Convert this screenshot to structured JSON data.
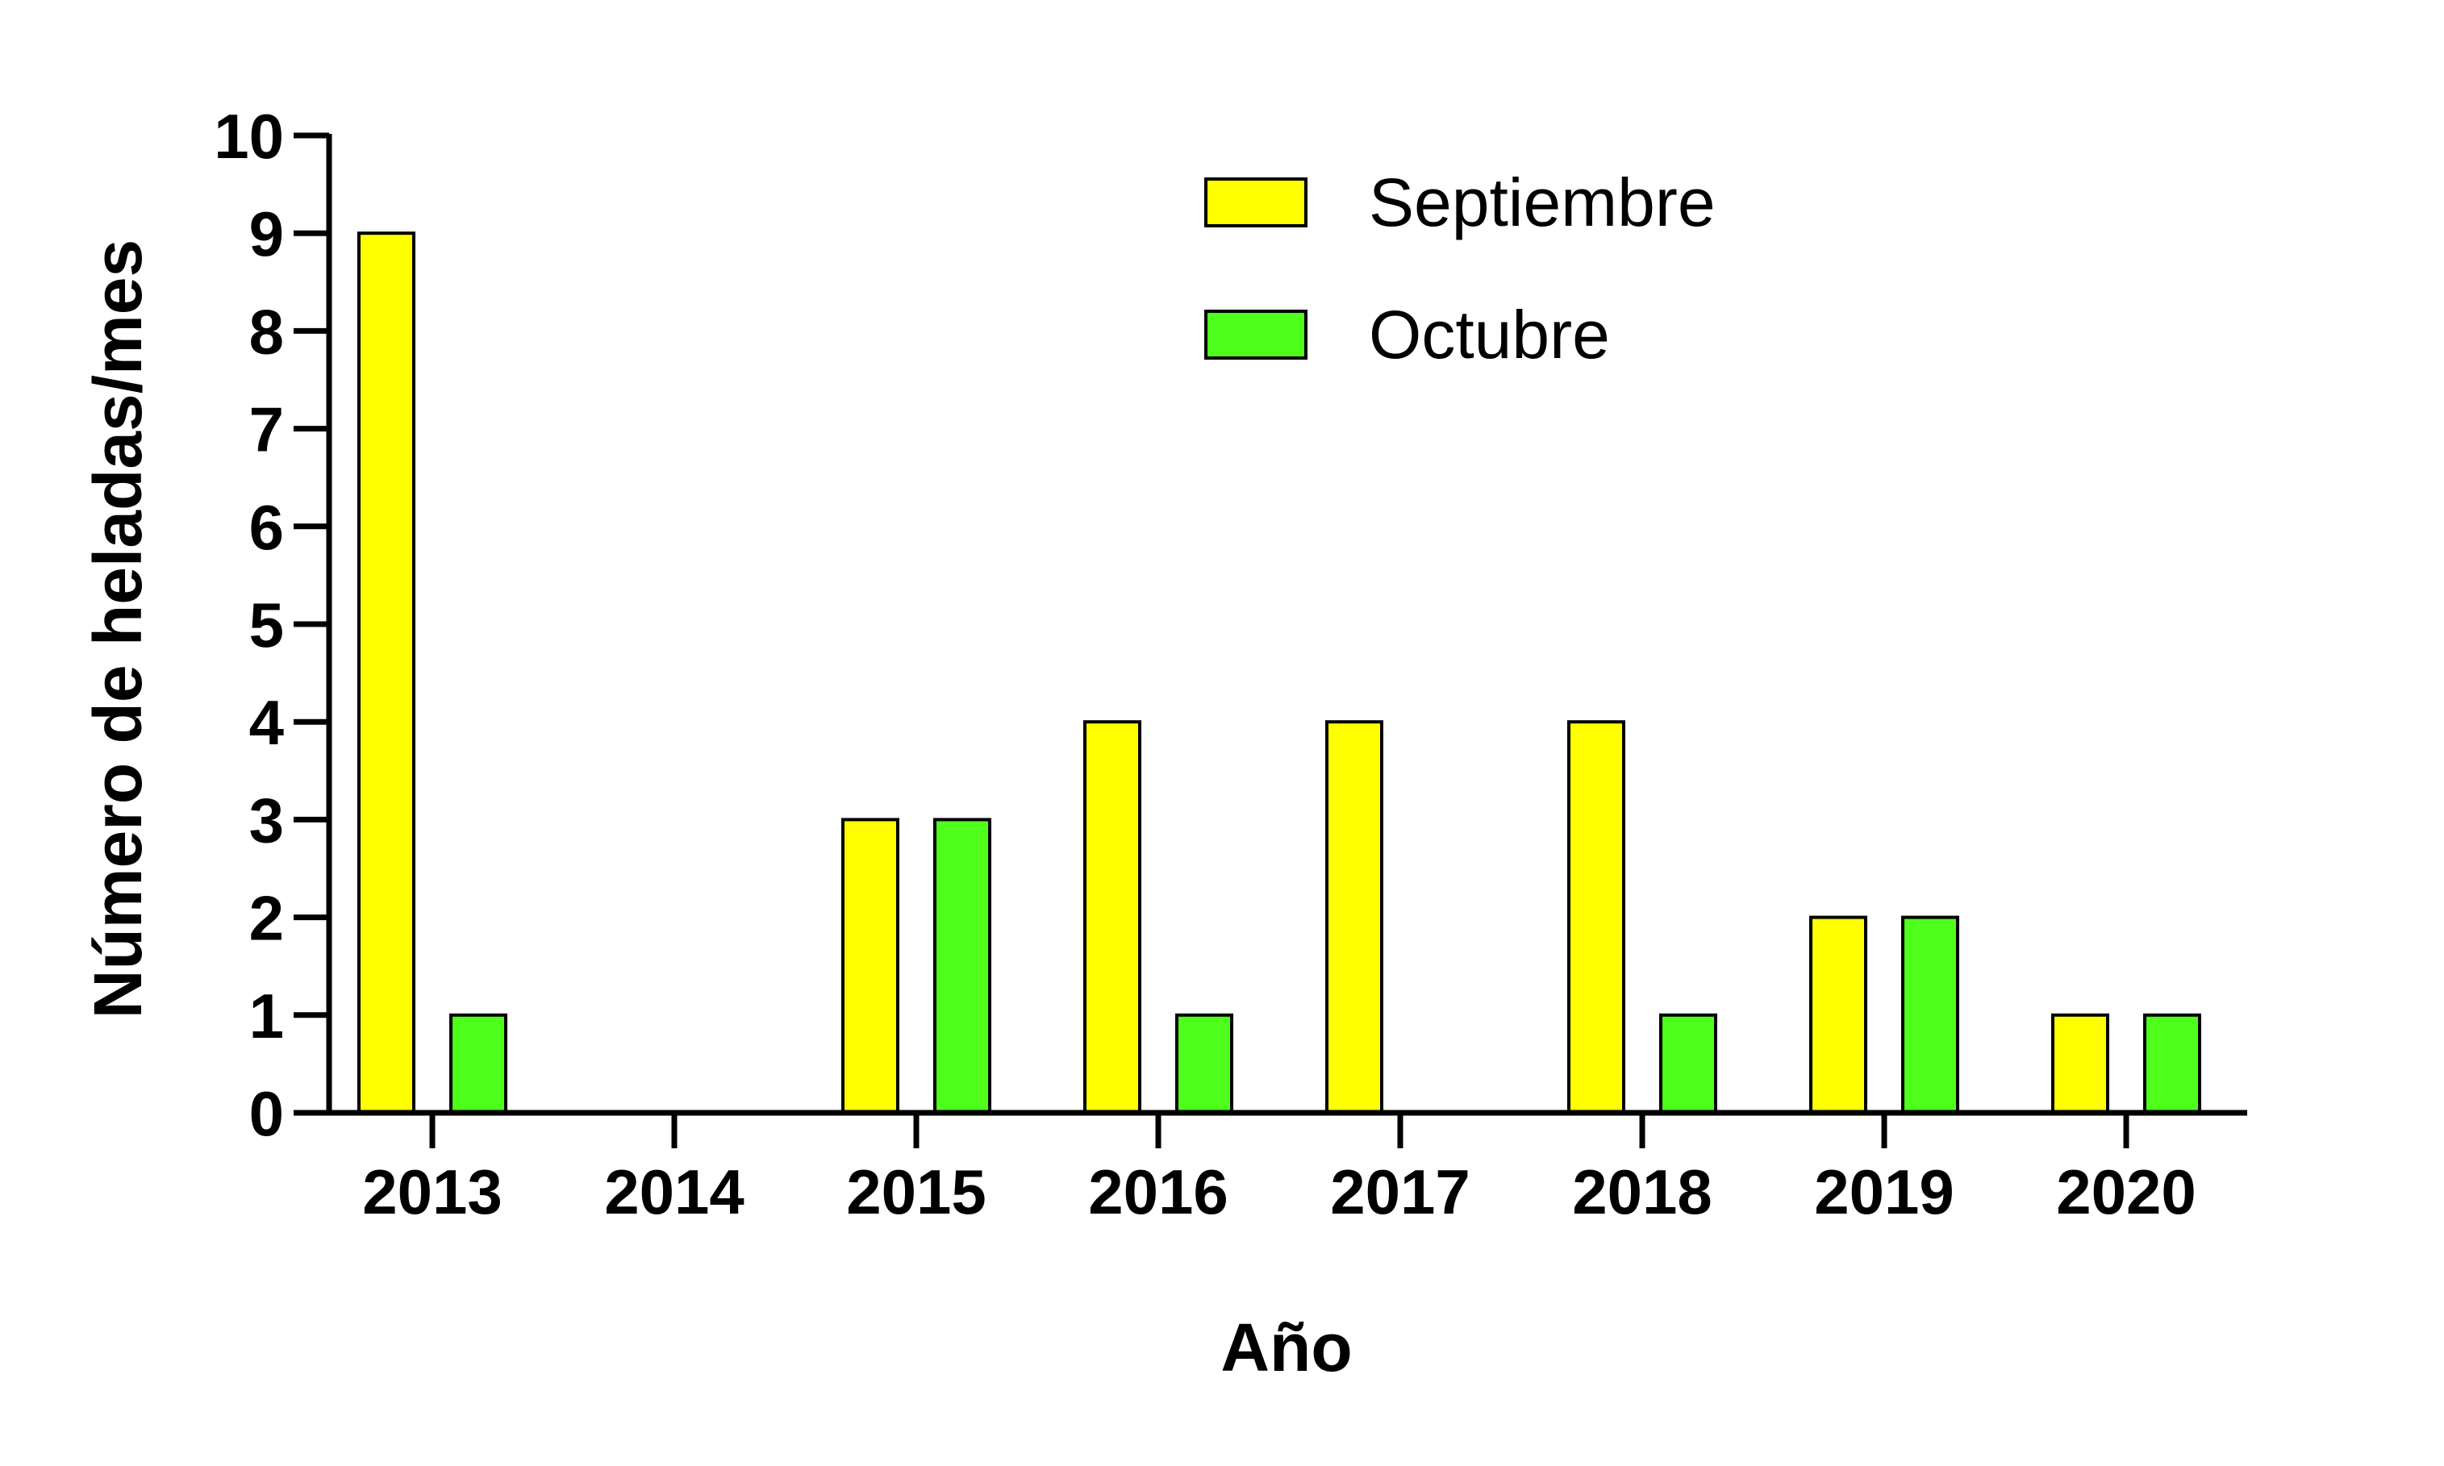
{
  "chart_data": {
    "type": "bar",
    "title": "",
    "xlabel": "Año",
    "ylabel": "Número de heladas/mes",
    "categories": [
      "2013",
      "2014",
      "2015",
      "2016",
      "2017",
      "2018",
      "2019",
      "2020"
    ],
    "series": [
      {
        "name": "Septiembre",
        "color": "#ffff00",
        "values": [
          9,
          0,
          3,
          4,
          4,
          4,
          2,
          1
        ]
      },
      {
        "name": "Octubre",
        "color": "#4dff1a",
        "values": [
          1,
          0,
          3,
          1,
          0,
          1,
          2,
          1
        ]
      }
    ],
    "ylim": [
      0,
      10
    ],
    "yticks": [
      "0",
      "1",
      "2",
      "3",
      "4",
      "5",
      "6",
      "7",
      "8",
      "9",
      "10"
    ],
    "grid": false,
    "legend_position": "top-right"
  }
}
